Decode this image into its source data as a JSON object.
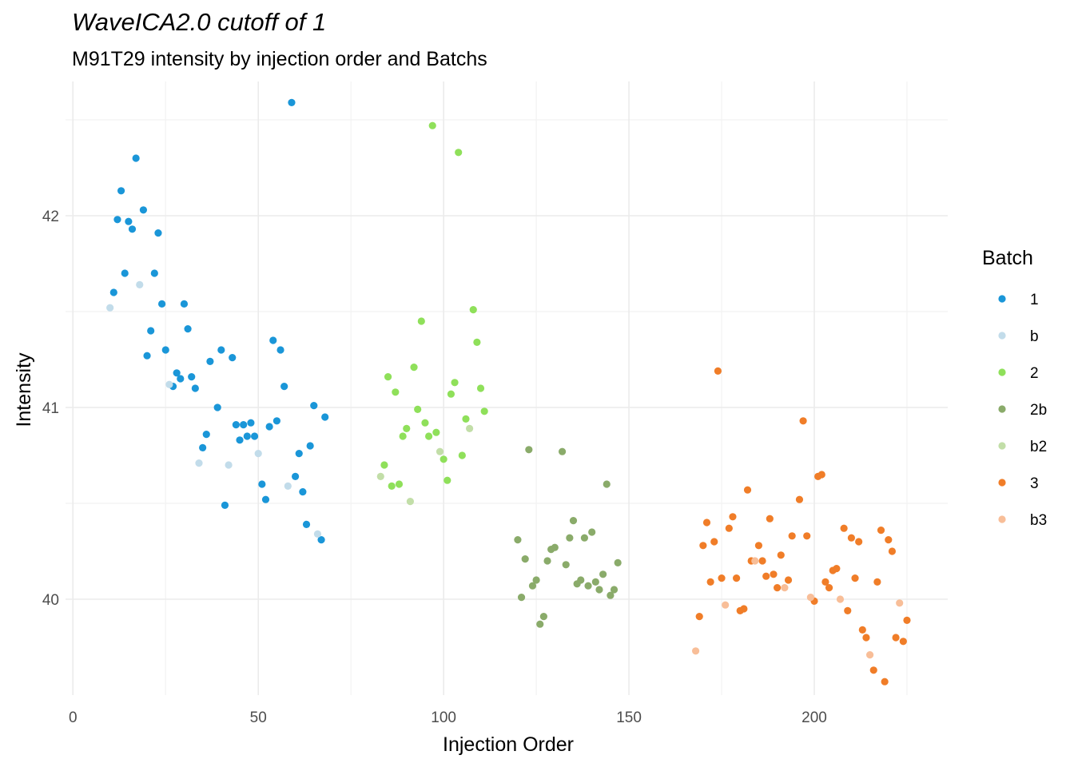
{
  "chart_data": {
    "type": "scatter",
    "title": "WaveICA2.0 cutoff of 1",
    "subtitle": "M91T29 intensity by injection order and Batchs",
    "xlabel": "Injection Order",
    "ylabel": "Intensity",
    "xlim": [
      -2,
      236
    ],
    "ylim": [
      39.5,
      42.7
    ],
    "x_ticks": [
      0,
      50,
      100,
      150,
      200
    ],
    "y_ticks": [
      40,
      41,
      42
    ],
    "grid": true,
    "legend": {
      "title": "Batch",
      "position": "right"
    },
    "series": [
      {
        "name": "1",
        "color": "#1a96d8",
        "points": [
          [
            11,
            41.6
          ],
          [
            12,
            41.98
          ],
          [
            13,
            42.13
          ],
          [
            14,
            41.7
          ],
          [
            15,
            41.97
          ],
          [
            16,
            41.93
          ],
          [
            17,
            42.3
          ],
          [
            19,
            42.03
          ],
          [
            20,
            41.27
          ],
          [
            21,
            41.4
          ],
          [
            22,
            41.7
          ],
          [
            23,
            41.91
          ],
          [
            24,
            41.54
          ],
          [
            25,
            41.3
          ],
          [
            27,
            41.11
          ],
          [
            28,
            41.18
          ],
          [
            29,
            41.15
          ],
          [
            30,
            41.54
          ],
          [
            31,
            41.41
          ],
          [
            32,
            41.16
          ],
          [
            33,
            41.1
          ],
          [
            35,
            40.79
          ],
          [
            36,
            40.86
          ],
          [
            37,
            41.24
          ],
          [
            39,
            41.0
          ],
          [
            40,
            41.3
          ],
          [
            41,
            40.49
          ],
          [
            43,
            41.26
          ],
          [
            44,
            40.91
          ],
          [
            45,
            40.83
          ],
          [
            46,
            40.91
          ],
          [
            47,
            40.85
          ],
          [
            48,
            40.92
          ],
          [
            49,
            40.85
          ],
          [
            51,
            40.6
          ],
          [
            52,
            40.52
          ],
          [
            53,
            40.9
          ],
          [
            54,
            41.35
          ],
          [
            55,
            40.93
          ],
          [
            56,
            41.3
          ],
          [
            57,
            41.11
          ],
          [
            59,
            42.59
          ],
          [
            60,
            40.64
          ],
          [
            61,
            40.76
          ],
          [
            62,
            40.56
          ],
          [
            63,
            40.39
          ],
          [
            64,
            40.8
          ],
          [
            65,
            41.01
          ],
          [
            67,
            40.31
          ],
          [
            68,
            40.95
          ]
        ]
      },
      {
        "name": "b",
        "color": "#c2dcea",
        "points": [
          [
            10,
            41.52
          ],
          [
            18,
            41.64
          ],
          [
            26,
            41.12
          ],
          [
            34,
            40.71
          ],
          [
            42,
            40.7
          ],
          [
            50,
            40.76
          ],
          [
            58,
            40.59
          ],
          [
            66,
            40.34
          ]
        ]
      },
      {
        "name": "2",
        "color": "#8fe05a",
        "points": [
          [
            84,
            40.7
          ],
          [
            85,
            41.16
          ],
          [
            86,
            40.59
          ],
          [
            87,
            41.08
          ],
          [
            88,
            40.6
          ],
          [
            89,
            40.85
          ],
          [
            90,
            40.89
          ],
          [
            92,
            41.21
          ],
          [
            93,
            40.99
          ],
          [
            94,
            41.45
          ],
          [
            95,
            40.92
          ],
          [
            96,
            40.85
          ],
          [
            97,
            42.47
          ],
          [
            98,
            40.87
          ],
          [
            100,
            40.73
          ],
          [
            101,
            40.62
          ],
          [
            102,
            41.07
          ],
          [
            103,
            41.13
          ],
          [
            104,
            42.33
          ],
          [
            105,
            40.75
          ],
          [
            106,
            40.94
          ],
          [
            108,
            41.51
          ],
          [
            109,
            41.34
          ],
          [
            110,
            41.1
          ],
          [
            111,
            40.98
          ]
        ]
      },
      {
        "name": "2b",
        "color": "#8aab6a",
        "points": [
          [
            120,
            40.31
          ],
          [
            121,
            40.01
          ],
          [
            122,
            40.21
          ],
          [
            123,
            40.78
          ],
          [
            124,
            40.07
          ],
          [
            125,
            40.1
          ],
          [
            126,
            39.87
          ],
          [
            127,
            39.91
          ],
          [
            128,
            40.2
          ],
          [
            129,
            40.26
          ],
          [
            130,
            40.27
          ],
          [
            132,
            40.77
          ],
          [
            133,
            40.18
          ],
          [
            134,
            40.32
          ],
          [
            135,
            40.41
          ],
          [
            136,
            40.08
          ],
          [
            137,
            40.1
          ],
          [
            138,
            40.32
          ],
          [
            139,
            40.07
          ],
          [
            140,
            40.35
          ],
          [
            141,
            40.09
          ],
          [
            142,
            40.05
          ],
          [
            143,
            40.13
          ],
          [
            144,
            40.6
          ],
          [
            145,
            40.02
          ],
          [
            146,
            40.05
          ],
          [
            147,
            40.19
          ]
        ]
      },
      {
        "name": "b2",
        "color": "#c2dea8",
        "points": [
          [
            83,
            40.64
          ],
          [
            91,
            40.51
          ],
          [
            99,
            40.77
          ],
          [
            107,
            40.89
          ]
        ]
      },
      {
        "name": "3",
        "color": "#f07d28",
        "points": [
          [
            169,
            39.91
          ],
          [
            170,
            40.28
          ],
          [
            171,
            40.4
          ],
          [
            172,
            40.09
          ],
          [
            173,
            40.3
          ],
          [
            174,
            41.19
          ],
          [
            175,
            40.11
          ],
          [
            177,
            40.37
          ],
          [
            178,
            40.43
          ],
          [
            179,
            40.11
          ],
          [
            180,
            39.94
          ],
          [
            181,
            39.95
          ],
          [
            182,
            40.57
          ],
          [
            183,
            40.2
          ],
          [
            185,
            40.28
          ],
          [
            186,
            40.2
          ],
          [
            187,
            40.12
          ],
          [
            188,
            40.42
          ],
          [
            189,
            40.13
          ],
          [
            190,
            40.06
          ],
          [
            191,
            40.23
          ],
          [
            193,
            40.1
          ],
          [
            194,
            40.33
          ],
          [
            196,
            40.52
          ],
          [
            197,
            40.93
          ],
          [
            198,
            40.33
          ],
          [
            200,
            39.99
          ],
          [
            201,
            40.64
          ],
          [
            202,
            40.65
          ],
          [
            203,
            40.09
          ],
          [
            204,
            40.06
          ],
          [
            205,
            40.15
          ],
          [
            206,
            40.16
          ],
          [
            208,
            40.37
          ],
          [
            209,
            39.94
          ],
          [
            210,
            40.32
          ],
          [
            211,
            40.11
          ],
          [
            212,
            40.3
          ],
          [
            213,
            39.84
          ],
          [
            214,
            39.8
          ],
          [
            216,
            39.63
          ],
          [
            217,
            40.09
          ],
          [
            218,
            40.36
          ],
          [
            219,
            39.57
          ],
          [
            220,
            40.31
          ],
          [
            221,
            40.25
          ],
          [
            222,
            39.8
          ],
          [
            224,
            39.78
          ],
          [
            225,
            39.89
          ]
        ]
      },
      {
        "name": "b3",
        "color": "#f8be98",
        "points": [
          [
            168,
            39.73
          ],
          [
            176,
            39.97
          ],
          [
            184,
            40.2
          ],
          [
            192,
            40.06
          ],
          [
            199,
            40.01
          ],
          [
            207,
            40.0
          ],
          [
            215,
            39.71
          ],
          [
            223,
            39.98
          ]
        ]
      }
    ]
  }
}
